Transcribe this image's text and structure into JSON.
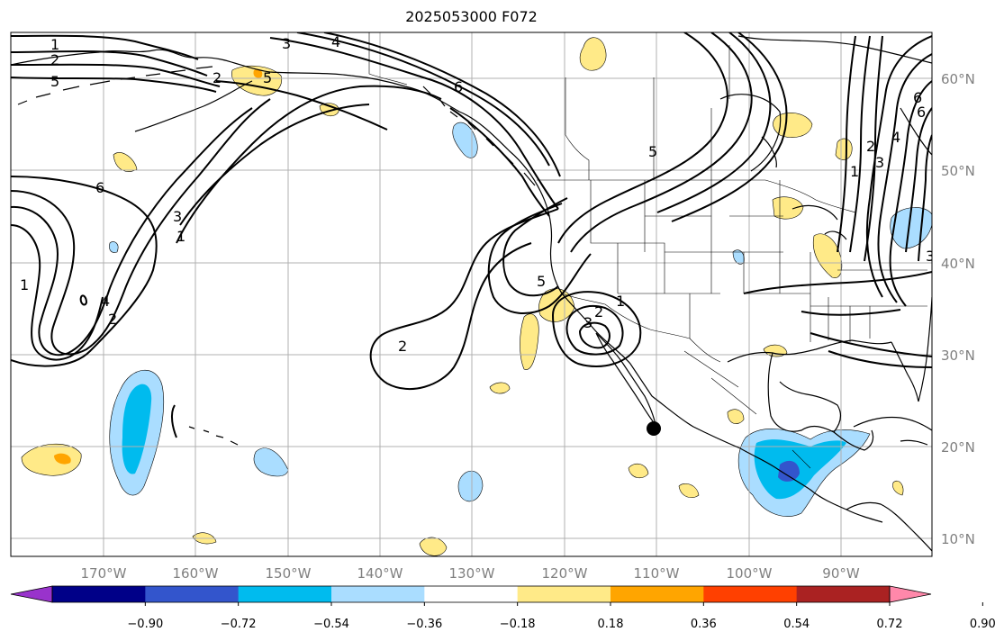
{
  "title": "2025053000 F072",
  "lon_labels": [
    "170°W",
    "160°W",
    "150°W",
    "140°W",
    "130°W",
    "120°W",
    "110°W",
    "100°W",
    "90°W"
  ],
  "lat_labels": [
    "60°N",
    "50°N",
    "40°N",
    "30°N",
    "20°N",
    "10°N"
  ],
  "colorbar": {
    "ticks": [
      "−0.90",
      "−0.72",
      "−0.54",
      "−0.36",
      "−0.18",
      "0.18",
      "0.36",
      "0.54",
      "0.72",
      "0.90"
    ],
    "colors": [
      "#9933cc",
      "#000088",
      "#3355cc",
      "#00bbee",
      "#aaddff",
      "#ffffff",
      "#ffea88",
      "#ffa500",
      "#ff4000",
      "#aa2222",
      "#ff88aa"
    ]
  },
  "contour_labels": [
    "1",
    "2",
    "5",
    "3",
    "4",
    "6",
    "6",
    "3",
    "1",
    "4",
    "2",
    "1",
    "5",
    "2",
    "1",
    "2",
    "3",
    "5",
    "6",
    "2",
    "3",
    "4",
    "1",
    "2",
    "3",
    "6",
    "5"
  ],
  "marker": "point"
}
